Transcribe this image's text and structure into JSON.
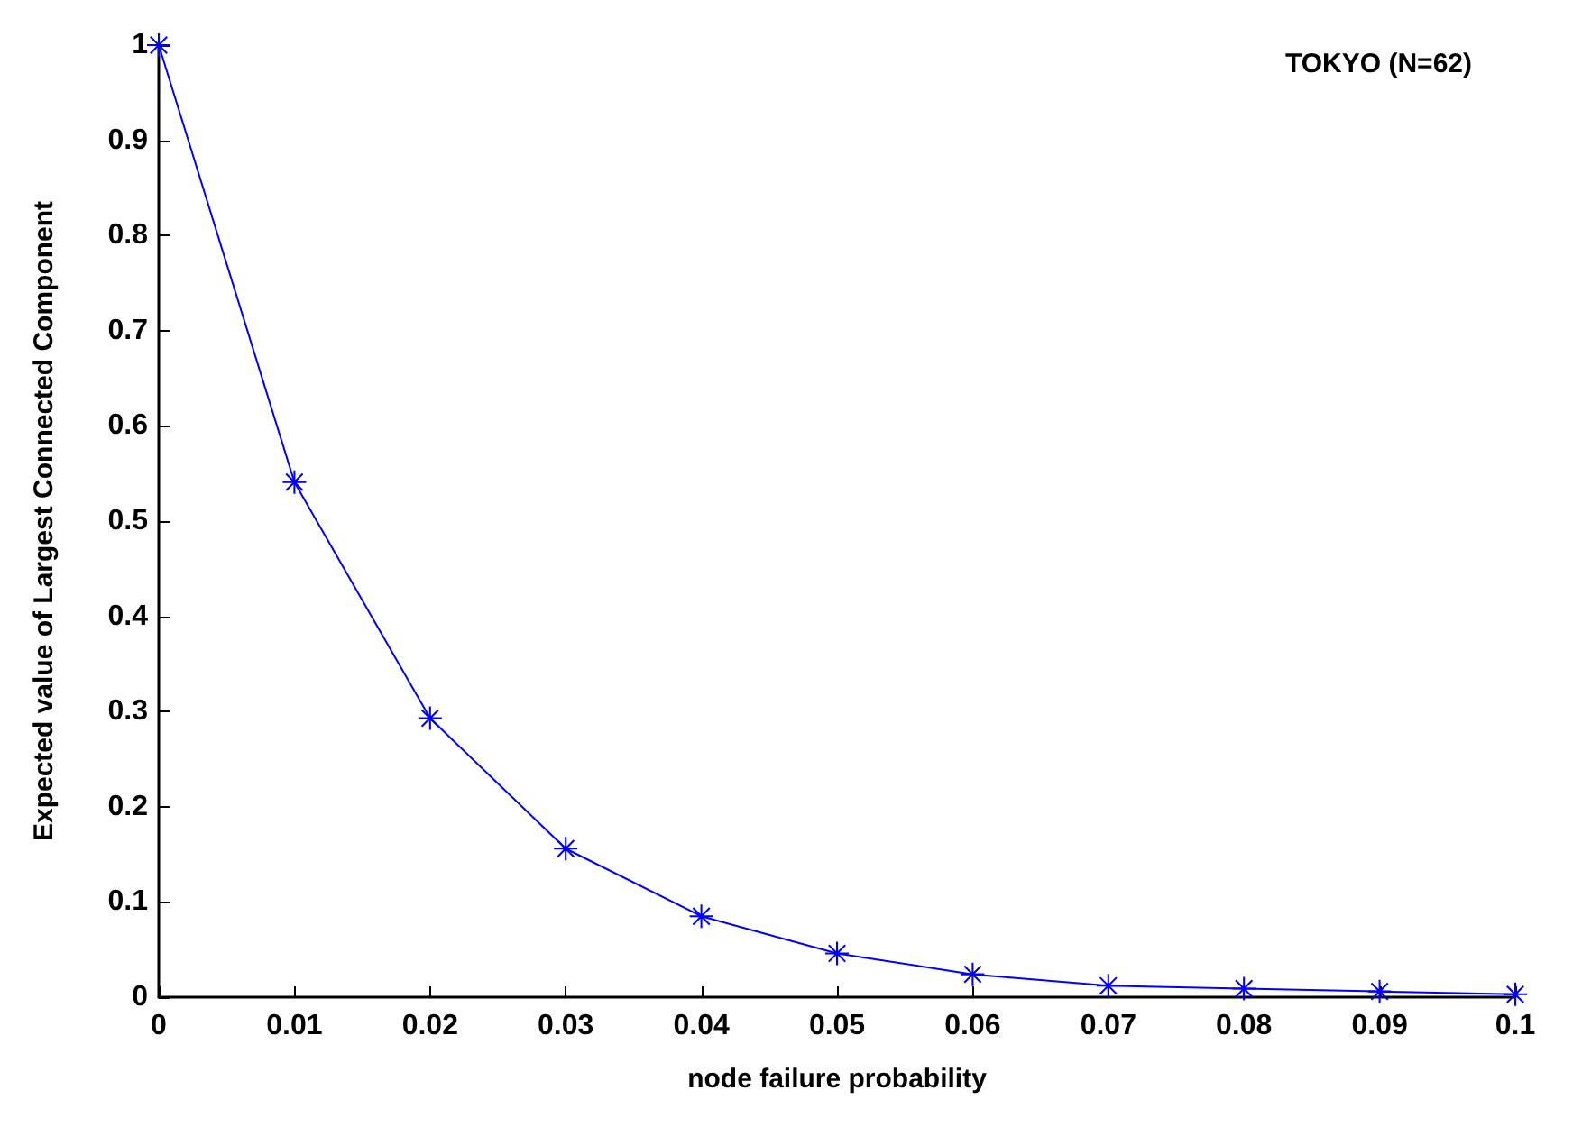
{
  "chart_data": {
    "type": "line",
    "xlabel": "node failure probability",
    "ylabel": "Expected value of Largest Connected Component",
    "annotations": [
      "TOKYO (N=62)"
    ],
    "x": [
      0,
      0.01,
      0.02,
      0.03,
      0.04,
      0.05,
      0.06,
      0.07,
      0.08,
      0.09,
      0.1
    ],
    "series": [
      {
        "color": "#0000ff",
        "values": [
          1,
          0.541,
          0.293,
          0.156,
          0.085,
          0.046,
          0.024,
          0.012,
          0.009,
          0.006,
          0.003
        ]
      }
    ],
    "xlim": [
      0,
      0.1
    ],
    "xticks": [
      0,
      0.01,
      0.02,
      0.03,
      0.04,
      0.05,
      0.06,
      0.07,
      0.08,
      0.09,
      0.1
    ],
    "ylim": [
      0,
      1
    ],
    "yticks": [
      0,
      0.1,
      0.2,
      0.3,
      0.4,
      0.5,
      0.6,
      0.7,
      0.8,
      0.9,
      1
    ],
    "grid": false,
    "marker": "star",
    "line_style": "solid"
  }
}
